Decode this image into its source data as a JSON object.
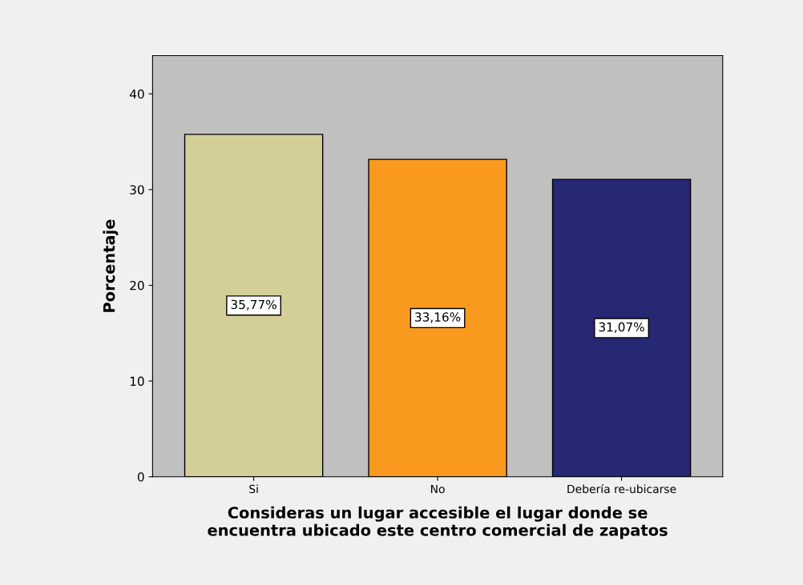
{
  "chart_data": {
    "type": "bar",
    "xlabel": "Consideras un lugar accesible el lugar donde se\nencuentra ubicado este centro comercial de zapatos",
    "ylabel": "Porcentaje",
    "categories": [
      "Si",
      "No",
      "Debería re-ubicarse"
    ],
    "values": [
      35.77,
      33.16,
      31.07
    ],
    "colors": [
      "#d4cf98",
      "#f99a1f",
      "#262873"
    ],
    "value_labels": [
      "35,77%",
      "33,16%",
      "31,07%"
    ],
    "ylim": [
      0,
      44
    ],
    "yticks": [
      0,
      10,
      20,
      30,
      40
    ],
    "grid": false,
    "legend": false
  }
}
